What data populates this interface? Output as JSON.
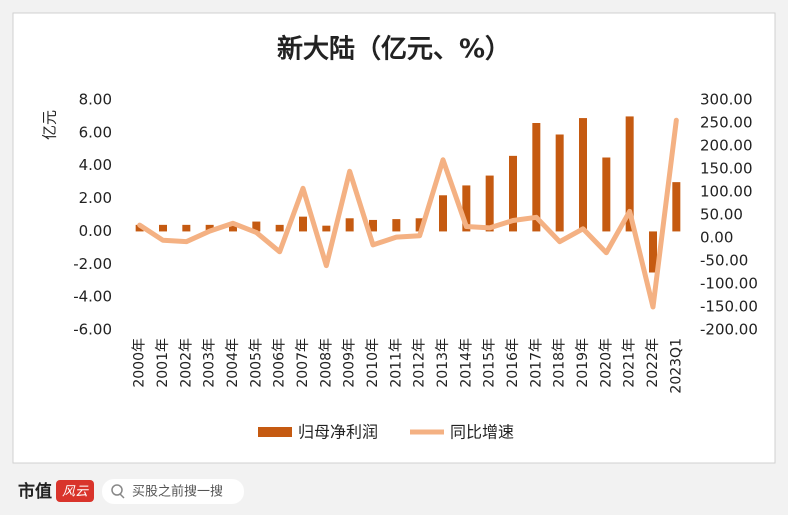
{
  "chart_data": {
    "type": "bar_line",
    "title": "新大陆（亿元、%）",
    "y_label": "亿元",
    "categories": [
      "2000年",
      "2001年",
      "2002年",
      "2003年",
      "2004年",
      "2005年",
      "2006年",
      "2007年",
      "2008年",
      "2009年",
      "2010年",
      "2011年",
      "2012年",
      "2013年",
      "2014年",
      "2015年",
      "2016年",
      "2017年",
      "2018年",
      "2019年",
      "2020年",
      "2021年",
      "2022年",
      "2023Q1"
    ],
    "series": [
      {
        "name": "归母净利润",
        "type": "bar",
        "color": "#c55a11",
        "values": [
          0.4,
          0.4,
          0.4,
          0.4,
          0.5,
          0.6,
          0.4,
          0.9,
          0.35,
          0.8,
          0.7,
          0.75,
          0.8,
          2.2,
          2.8,
          3.4,
          4.6,
          6.6,
          5.9,
          6.9,
          4.5,
          7.0,
          -2.5,
          3.0
        ]
      },
      {
        "name": "同比增速",
        "type": "line",
        "axis": "y2",
        "color": "#f4b183",
        "values": [
          28,
          -5,
          -8,
          15,
          32,
          12,
          -30,
          108,
          -60,
          145,
          -15,
          2,
          5,
          170,
          25,
          22,
          38,
          45,
          -8,
          20,
          -32,
          58,
          -150,
          256
        ]
      }
    ],
    "ylim": [
      -6,
      8
    ],
    "yticks": [
      {
        "value": -6,
        "label": "-6.00"
      },
      {
        "value": -4,
        "label": "-4.00"
      },
      {
        "value": -2,
        "label": "-2.00"
      },
      {
        "value": 0,
        "label": "0.00"
      },
      {
        "value": 2,
        "label": "2.00"
      },
      {
        "value": 4,
        "label": "4.00"
      },
      {
        "value": 6,
        "label": "6.00"
      },
      {
        "value": 8,
        "label": "8.00"
      }
    ],
    "y2lim": [
      -200,
      300
    ],
    "y2ticks": [
      {
        "value": -200,
        "label": "-200.00"
      },
      {
        "value": -150,
        "label": "-150.00"
      },
      {
        "value": -100,
        "label": "-100.00"
      },
      {
        "value": -50,
        "label": "-50.00"
      },
      {
        "value": 0,
        "label": "0.00"
      },
      {
        "value": 50,
        "label": "50.00"
      },
      {
        "value": 100,
        "label": "100.00"
      },
      {
        "value": 150,
        "label": "150.00"
      },
      {
        "value": 200,
        "label": "200.00"
      },
      {
        "value": 250,
        "label": "250.00"
      },
      {
        "value": 300,
        "label": "300.00"
      }
    ],
    "legend": "bottom"
  },
  "footer": {
    "brand": "市值",
    "logo": "风云",
    "search": "买股之前搜一搜"
  }
}
